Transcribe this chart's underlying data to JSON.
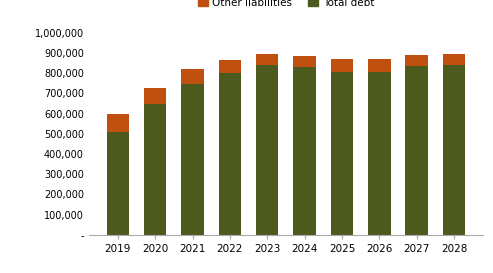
{
  "years": [
    "2019",
    "2020",
    "2021",
    "2022",
    "2023",
    "2024",
    "2025",
    "2026",
    "2027",
    "2028"
  ],
  "total_debt": [
    510000,
    645000,
    748000,
    800000,
    840000,
    830000,
    805000,
    808000,
    835000,
    838000
  ],
  "other_liabilities": [
    90000,
    80000,
    75000,
    65000,
    55000,
    55000,
    65000,
    62000,
    55000,
    55000
  ],
  "color_debt": "#4d5a1e",
  "color_other": "#bf5010",
  "legend_labels": [
    "Other liabilities",
    "Total debt"
  ],
  "ylim": [
    0,
    1000000
  ],
  "yticks": [
    0,
    100000,
    200000,
    300000,
    400000,
    500000,
    600000,
    700000,
    800000,
    900000,
    1000000
  ],
  "ytick_labels": [
    "-",
    "100,000",
    "200,000",
    "300,000",
    "400,000",
    "500,000",
    "600,000",
    "700,000",
    "800,000",
    "900,000",
    "1,000,000"
  ],
  "bg_color": "#ffffff",
  "bar_width": 0.6,
  "figsize": [
    4.93,
    2.73
  ],
  "dpi": 100
}
